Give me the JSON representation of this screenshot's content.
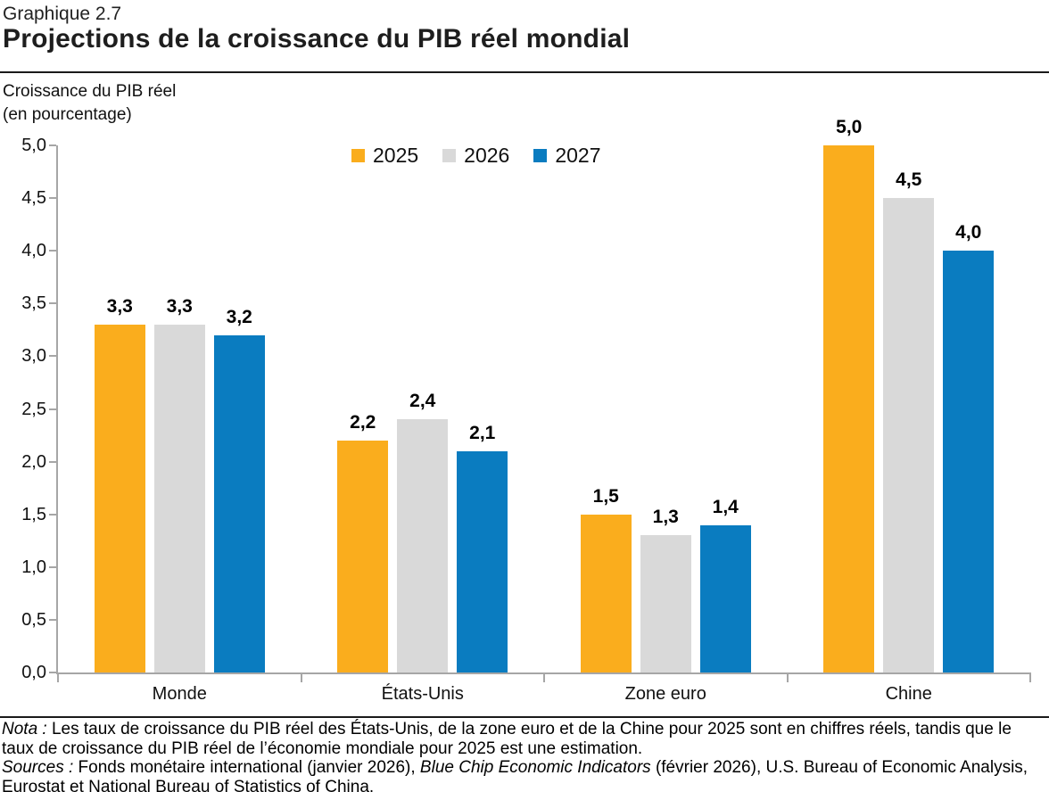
{
  "header": {
    "figure_label": "Graphique 2.7",
    "title": "Projections de la croissance du PIB réel mondial"
  },
  "axis_caption": {
    "line1": "Croissance du PIB réel",
    "line2": "(en pourcentage)"
  },
  "chart_data": {
    "type": "bar",
    "title": "Projections de la croissance du PIB réel mondial",
    "ylabel": "Croissance du PIB réel (en pourcentage)",
    "xlabel": "",
    "ylim": [
      0,
      5
    ],
    "ytick_step": 0.5,
    "ytick_labels": [
      "5,0",
      "4,5",
      "4,0",
      "3,5",
      "3,0",
      "2,5",
      "2,0",
      "1,5",
      "1,0",
      "0,5",
      "0,0"
    ],
    "grid": false,
    "legend_position": "top-center",
    "categories": [
      "Monde",
      "États-Unis",
      "Zone euro",
      "Chine"
    ],
    "series": [
      {
        "name": "2025",
        "color": "#FAAD1D",
        "values": [
          3.3,
          2.2,
          1.5,
          5.0
        ],
        "labels": [
          "3,3",
          "2,2",
          "1,5",
          "5,0"
        ]
      },
      {
        "name": "2026",
        "color": "#D9D9D9",
        "values": [
          3.3,
          2.4,
          1.3,
          4.5
        ],
        "labels": [
          "3,3",
          "2,4",
          "1,3",
          "4,5"
        ]
      },
      {
        "name": "2027",
        "color": "#0A7CC0",
        "values": [
          3.2,
          2.1,
          1.4,
          4.0
        ],
        "labels": [
          "3,2",
          "2,1",
          "1,4",
          "4,0"
        ]
      }
    ]
  },
  "axis_color": "#A6A6A6",
  "notes": {
    "nota": [
      {
        "t": "Nota :",
        "i": true
      },
      {
        "t": " Les taux de croissance du PIB réel des États-Unis, de la zone euro et de la Chine pour 2025 sont en chiffres réels, tandis que le taux de croissance du PIB réel de l’économie mondiale pour 2025 est une estimation.",
        "i": false
      }
    ],
    "sources": [
      {
        "t": "Sources :",
        "i": true
      },
      {
        "t": " Fonds monétaire international (janvier 2026), ",
        "i": false
      },
      {
        "t": "Blue Chip Economic Indicators",
        "i": true
      },
      {
        "t": " (février 2026), U.S. Bureau of Economic Analysis, Eurostat et National Bureau of Statistics of China.",
        "i": false
      }
    ]
  }
}
